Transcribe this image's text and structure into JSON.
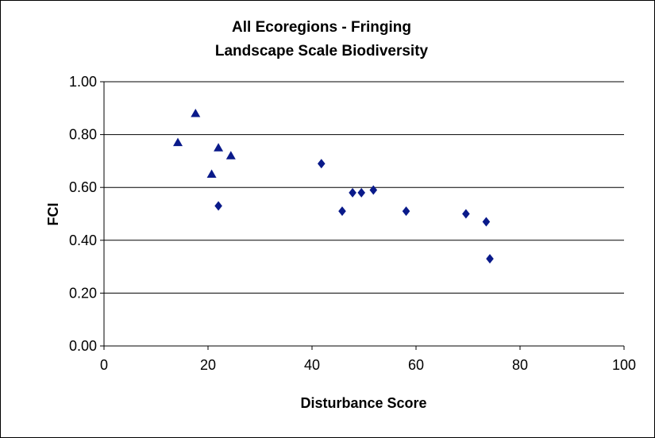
{
  "chart_data": {
    "type": "scatter",
    "title": "All Ecoregions - Fringing",
    "subtitle": "Landscape Scale Biodiversity",
    "xlabel": "Disturbance Score",
    "ylabel": "FCI",
    "xlim": [
      0,
      100
    ],
    "ylim": [
      0,
      1
    ],
    "x_ticks": [
      "0",
      "20",
      "40",
      "60",
      "80",
      "100"
    ],
    "y_ticks": [
      "0.00",
      "0.20",
      "0.40",
      "0.60",
      "0.80",
      "1.00"
    ],
    "grid": "horizontal",
    "legend": "none",
    "colors": {
      "marker": "#0a1a8a",
      "grid": "#000000",
      "axis": "#000000"
    },
    "series": [
      {
        "marker": "triangle",
        "points": [
          {
            "x": 14.2,
            "y": 0.77
          },
          {
            "x": 17.6,
            "y": 0.88
          },
          {
            "x": 20.7,
            "y": 0.65
          },
          {
            "x": 22.0,
            "y": 0.75
          },
          {
            "x": 24.4,
            "y": 0.72
          }
        ]
      },
      {
        "marker": "diamond",
        "points": [
          {
            "x": 22.0,
            "y": 0.53
          },
          {
            "x": 41.8,
            "y": 0.69
          },
          {
            "x": 45.8,
            "y": 0.51
          },
          {
            "x": 47.8,
            "y": 0.58
          },
          {
            "x": 49.5,
            "y": 0.58
          },
          {
            "x": 51.8,
            "y": 0.59
          },
          {
            "x": 58.1,
            "y": 0.51
          },
          {
            "x": 69.6,
            "y": 0.5
          },
          {
            "x": 73.5,
            "y": 0.47
          },
          {
            "x": 74.2,
            "y": 0.33
          }
        ]
      }
    ]
  }
}
